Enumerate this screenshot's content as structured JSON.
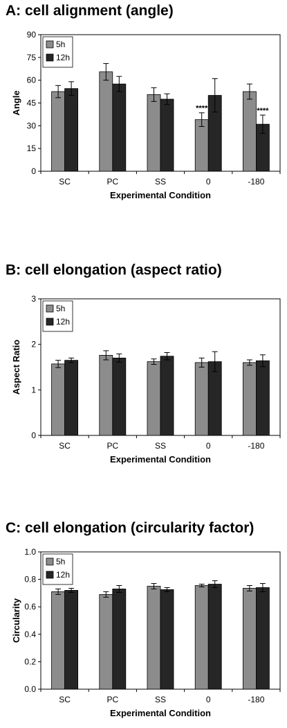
{
  "colors": {
    "series_5h": "#8c8c8c",
    "series_12h": "#262626",
    "axis": "#000000"
  },
  "chart_data": [
    {
      "panel_id": "A",
      "type": "bar",
      "title": "A: cell alignment (angle)",
      "xlabel": "Experimental Condition",
      "ylabel": "Angle",
      "categories": [
        "SC",
        "PC",
        "SS",
        "0",
        "-180"
      ],
      "yticks": [
        "0",
        "15",
        "30",
        "45",
        "60",
        "75",
        "90"
      ],
      "ylim": [
        0,
        90
      ],
      "legend": "top-left",
      "series": [
        {
          "name": "5h",
          "values": [
            52.5,
            65.5,
            50.5,
            34,
            52.5
          ],
          "errors": [
            4,
            5.5,
            4.5,
            4.5,
            5
          ]
        },
        {
          "name": "12h",
          "values": [
            54.5,
            57.5,
            47.5,
            50,
            31
          ],
          "errors": [
            4.5,
            5,
            3.5,
            11,
            6
          ]
        }
      ],
      "annotations": [
        {
          "category_index": 3,
          "series_index": 0,
          "text": "****"
        },
        {
          "category_index": 4,
          "series_index": 1,
          "text": "****"
        }
      ]
    },
    {
      "panel_id": "B",
      "type": "bar",
      "title": "B: cell elongation (aspect ratio)",
      "xlabel": "Experimental Condition",
      "ylabel": "Aspect Ratio",
      "categories": [
        "SC",
        "PC",
        "SS",
        "0",
        "-180"
      ],
      "yticks": [
        "0",
        "1",
        "2",
        "3"
      ],
      "ylim": [
        0,
        3
      ],
      "legend": "top-left",
      "series": [
        {
          "name": "5h",
          "values": [
            1.57,
            1.76,
            1.62,
            1.6,
            1.6
          ],
          "errors": [
            0.08,
            0.1,
            0.06,
            0.1,
            0.06
          ]
        },
        {
          "name": "12h",
          "values": [
            1.65,
            1.7,
            1.74,
            1.62,
            1.64
          ],
          "errors": [
            0.05,
            0.09,
            0.08,
            0.22,
            0.13
          ]
        }
      ],
      "annotations": []
    },
    {
      "panel_id": "C",
      "type": "bar",
      "title": "C: cell elongation (circularity factor)",
      "xlabel": "Experimental Condition",
      "ylabel": "Circularity",
      "categories": [
        "SC",
        "PC",
        "SS",
        "0",
        "-180"
      ],
      "yticks": [
        "0.0",
        "0.2",
        "0.4",
        "0.6",
        "0.8",
        "1.0"
      ],
      "ylim": [
        0,
        1
      ],
      "legend": "top-left",
      "series": [
        {
          "name": "5h",
          "values": [
            0.71,
            0.69,
            0.75,
            0.755,
            0.735
          ],
          "errors": [
            0.02,
            0.02,
            0.02,
            0.01,
            0.02
          ]
        },
        {
          "name": "12h",
          "values": [
            0.72,
            0.73,
            0.725,
            0.765,
            0.74
          ],
          "errors": [
            0.015,
            0.025,
            0.015,
            0.025,
            0.03
          ]
        }
      ],
      "annotations": []
    }
  ]
}
